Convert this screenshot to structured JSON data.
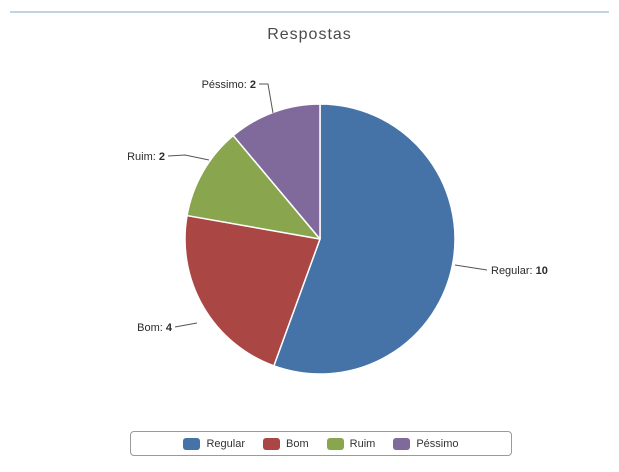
{
  "chart_data": {
    "type": "pie",
    "title": "Respostas",
    "categories": [
      "Regular",
      "Bom",
      "Ruim",
      "Péssimo"
    ],
    "values": [
      10,
      4,
      2,
      2
    ],
    "colors": [
      "#4572a7",
      "#aa4643",
      "#89a54e",
      "#80699b"
    ],
    "data_labels": [
      "Regular: 10",
      "Bom: 4",
      "Ruim: 2",
      "Péssimo: 2"
    ],
    "legend_position": "bottom",
    "legend": [
      "Regular",
      "Bom",
      "Ruim",
      "Péssimo"
    ]
  }
}
